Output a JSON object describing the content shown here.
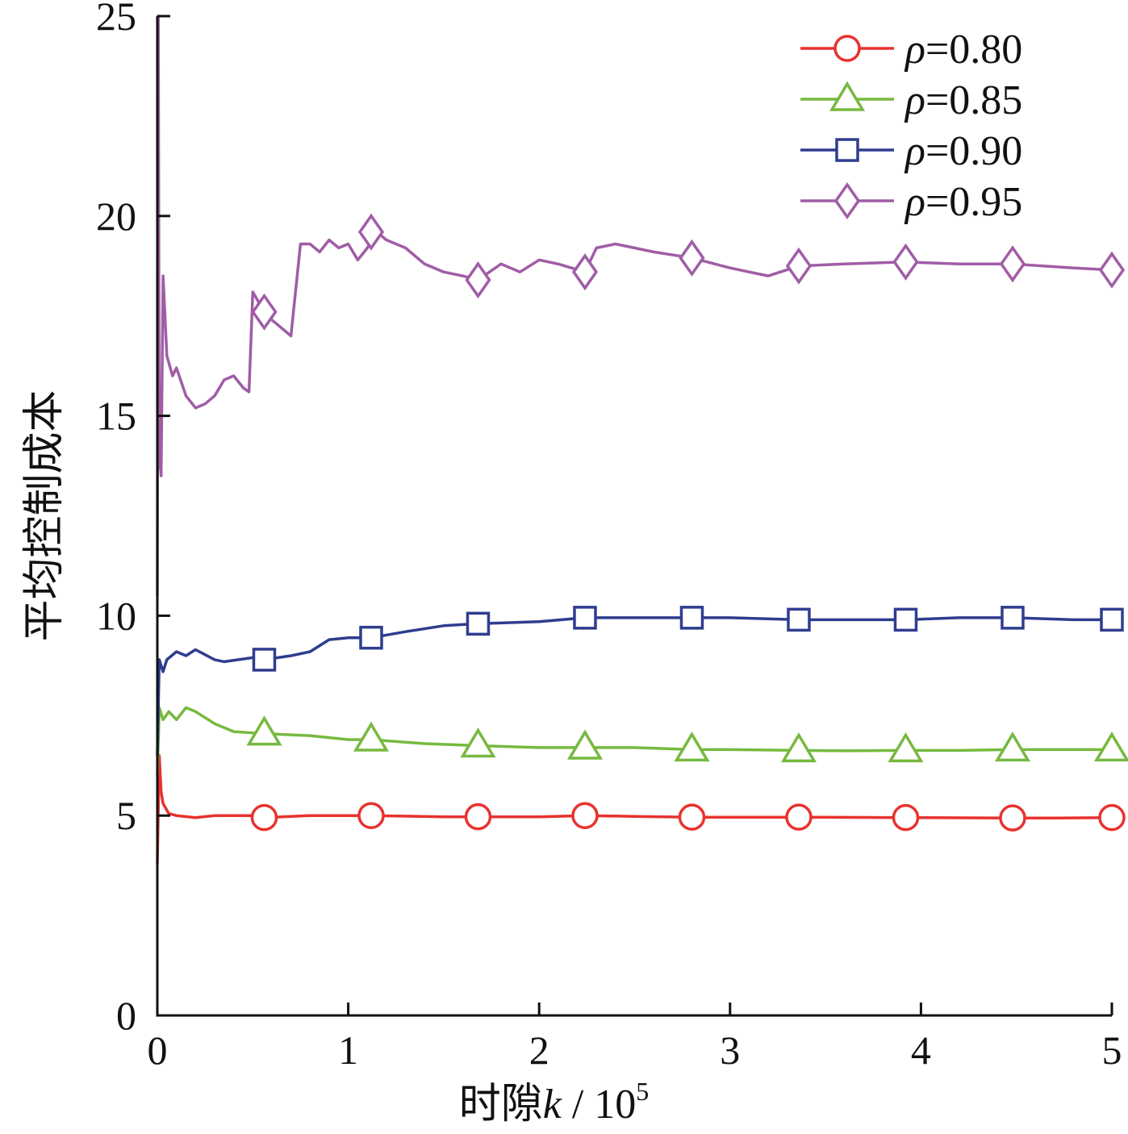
{
  "chart_data": {
    "type": "line",
    "xlabel": "时隙k / 10",
    "xlabel_parts": {
      "main": "时隙",
      "var": "k",
      "sep": " / 10",
      "exp": "5"
    },
    "ylabel": "平均控制成本",
    "xlim": [
      0,
      5
    ],
    "ylim": [
      0,
      25
    ],
    "xticks": [
      0,
      1,
      2,
      3,
      4,
      5
    ],
    "yticks": [
      0,
      5,
      10,
      15,
      20,
      25
    ],
    "xtick_labels": [
      "0",
      "1",
      "2",
      "3",
      "4",
      "5"
    ],
    "ytick_labels": [
      "0",
      "5",
      "10",
      "15",
      "20",
      "25"
    ],
    "grid": false,
    "legend_position": "top-right",
    "series": [
      {
        "name": "ρ=0.80",
        "legend_symbol": "ρ",
        "legend_value": "=0.80",
        "color": "#e8322e",
        "marker": "circle",
        "x": [
          0,
          0.01,
          0.02,
          0.03,
          0.06,
          0.1,
          0.2,
          0.3,
          0.5,
          0.56,
          0.8,
          1.0,
          1.12,
          1.5,
          1.68,
          2.0,
          2.24,
          2.5,
          2.8,
          3.0,
          3.36,
          3.5,
          3.92,
          4.0,
          4.48,
          4.7,
          5.0
        ],
        "y": [
          3.8,
          6.5,
          5.6,
          5.3,
          5.05,
          5.0,
          4.95,
          5.0,
          5.0,
          4.95,
          5.0,
          5.0,
          5.0,
          4.97,
          4.97,
          4.97,
          5.0,
          4.98,
          4.96,
          4.96,
          4.96,
          4.96,
          4.95,
          4.95,
          4.94,
          4.94,
          4.95
        ],
        "markers_x": [
          0.56,
          1.12,
          1.68,
          2.24,
          2.8,
          3.36,
          3.92,
          4.48,
          5.0
        ],
        "markers_y": [
          4.95,
          5.0,
          4.97,
          5.0,
          4.96,
          4.96,
          4.95,
          4.94,
          4.95
        ]
      },
      {
        "name": "ρ=0.85",
        "legend_symbol": "ρ",
        "legend_value": "=0.85",
        "color": "#77b93f",
        "marker": "triangle",
        "x": [
          0,
          0.01,
          0.03,
          0.06,
          0.1,
          0.15,
          0.2,
          0.3,
          0.4,
          0.56,
          0.8,
          1.0,
          1.12,
          1.4,
          1.68,
          2.0,
          2.24,
          2.5,
          2.8,
          3.0,
          3.36,
          3.6,
          3.92,
          4.2,
          4.48,
          4.8,
          5.0
        ],
        "y": [
          6.0,
          7.7,
          7.4,
          7.6,
          7.4,
          7.7,
          7.6,
          7.3,
          7.1,
          7.05,
          7.0,
          6.9,
          6.9,
          6.8,
          6.75,
          6.7,
          6.7,
          6.7,
          6.65,
          6.65,
          6.63,
          6.62,
          6.63,
          6.63,
          6.65,
          6.65,
          6.65
        ],
        "markers_x": [
          0.56,
          1.12,
          1.68,
          2.24,
          2.8,
          3.36,
          3.92,
          4.48,
          5.0
        ],
        "markers_y": [
          7.05,
          6.9,
          6.75,
          6.7,
          6.65,
          6.63,
          6.63,
          6.65,
          6.65
        ]
      },
      {
        "name": "ρ=0.90",
        "legend_symbol": "ρ",
        "legend_value": "=0.90",
        "color": "#2f3d8f",
        "marker": "square",
        "x": [
          0,
          0.01,
          0.03,
          0.05,
          0.1,
          0.15,
          0.2,
          0.3,
          0.35,
          0.5,
          0.56,
          0.7,
          0.8,
          0.9,
          1.0,
          1.12,
          1.3,
          1.5,
          1.68,
          2.0,
          2.24,
          2.5,
          2.8,
          3.0,
          3.36,
          3.6,
          3.92,
          4.2,
          4.48,
          4.8,
          5.0
        ],
        "y": [
          6.5,
          8.9,
          8.6,
          8.9,
          9.1,
          9.0,
          9.15,
          8.9,
          8.85,
          8.95,
          8.9,
          9.0,
          9.1,
          9.4,
          9.45,
          9.45,
          9.6,
          9.75,
          9.8,
          9.85,
          9.95,
          9.95,
          9.95,
          9.95,
          9.9,
          9.9,
          9.9,
          9.95,
          9.95,
          9.9,
          9.9
        ],
        "markers_x": [
          0.56,
          1.12,
          1.68,
          2.24,
          2.8,
          3.36,
          3.92,
          4.48,
          5.0
        ],
        "markers_y": [
          8.9,
          9.45,
          9.8,
          9.95,
          9.95,
          9.9,
          9.9,
          9.95,
          9.9
        ]
      },
      {
        "name": "ρ=0.95",
        "legend_symbol": "ρ",
        "legend_value": "=0.95",
        "color": "#a05da6",
        "marker": "diamond",
        "x": [
          0,
          0.005,
          0.01,
          0.02,
          0.03,
          0.05,
          0.08,
          0.1,
          0.15,
          0.2,
          0.25,
          0.3,
          0.35,
          0.4,
          0.45,
          0.48,
          0.5,
          0.56,
          0.6,
          0.7,
          0.75,
          0.8,
          0.85,
          0.9,
          0.95,
          1.0,
          1.05,
          1.1,
          1.15,
          1.2,
          1.3,
          1.4,
          1.5,
          1.6,
          1.68,
          1.8,
          1.9,
          2.0,
          2.1,
          2.24,
          2.3,
          2.4,
          2.6,
          2.8,
          3.0,
          3.2,
          3.36,
          3.6,
          3.92,
          4.2,
          4.48,
          4.8,
          5.0
        ],
        "y": [
          10.5,
          25.0,
          14.0,
          13.5,
          18.5,
          16.5,
          16.0,
          16.2,
          15.5,
          15.2,
          15.3,
          15.5,
          15.9,
          16.0,
          15.7,
          15.6,
          18.1,
          17.6,
          17.4,
          17.0,
          19.3,
          19.3,
          19.1,
          19.4,
          19.2,
          19.3,
          18.9,
          19.2,
          19.6,
          19.4,
          19.2,
          18.8,
          18.6,
          18.5,
          18.4,
          18.8,
          18.6,
          18.9,
          18.8,
          18.6,
          19.2,
          19.3,
          19.1,
          18.95,
          18.7,
          18.5,
          18.75,
          18.8,
          18.85,
          18.8,
          18.8,
          18.7,
          18.65
        ],
        "markers_x": [
          0.56,
          1.12,
          1.68,
          2.24,
          2.8,
          3.36,
          3.92,
          4.48,
          5.0
        ],
        "markers_y": [
          17.6,
          19.6,
          18.4,
          18.6,
          18.95,
          18.75,
          18.85,
          18.8,
          18.65
        ]
      }
    ]
  }
}
